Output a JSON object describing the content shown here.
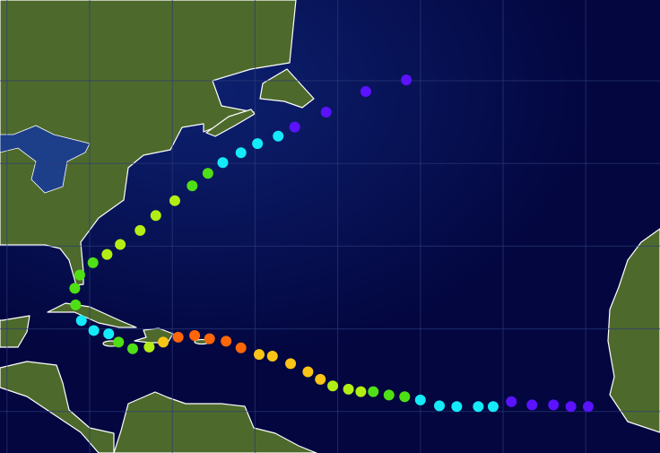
{
  "map": {
    "projection": "equirectangular",
    "grid_step_degrees": 10,
    "colors": {
      "ocean": "#03063f",
      "land": "#4d6a2c",
      "coastline": "#ffffff"
    },
    "track": [
      {
        "lat": 10.6,
        "lon": -19.7,
        "color": "#5a12ff"
      },
      {
        "lat": 10.6,
        "lon": -21.8,
        "color": "#5a12ff"
      },
      {
        "lat": 10.8,
        "lon": -23.9,
        "color": "#5a12ff"
      },
      {
        "lat": 10.8,
        "lon": -26.5,
        "color": "#5a12ff"
      },
      {
        "lat": 11.2,
        "lon": -29.0,
        "color": "#5a12ff"
      },
      {
        "lat": 10.6,
        "lon": -31.2,
        "color": "#14eaf8"
      },
      {
        "lat": 10.6,
        "lon": -33.0,
        "color": "#14eaf8"
      },
      {
        "lat": 10.6,
        "lon": -35.6,
        "color": "#14eaf8"
      },
      {
        "lat": 10.7,
        "lon": -37.7,
        "color": "#14eaf8"
      },
      {
        "lat": 11.4,
        "lon": -40.0,
        "color": "#14eaf8"
      },
      {
        "lat": 11.8,
        "lon": -41.9,
        "color": "#4ee014"
      },
      {
        "lat": 12.0,
        "lon": -43.8,
        "color": "#4ee014"
      },
      {
        "lat": 12.4,
        "lon": -45.7,
        "color": "#4ee014"
      },
      {
        "lat": 12.4,
        "lon": -47.2,
        "color": "#b2ee14"
      },
      {
        "lat": 12.7,
        "lon": -48.7,
        "color": "#b2ee14"
      },
      {
        "lat": 13.1,
        "lon": -50.6,
        "color": "#b2ee14"
      },
      {
        "lat": 13.9,
        "lon": -52.1,
        "color": "#fac416"
      },
      {
        "lat": 14.8,
        "lon": -53.6,
        "color": "#fac416"
      },
      {
        "lat": 15.8,
        "lon": -55.7,
        "color": "#fac416"
      },
      {
        "lat": 16.7,
        "lon": -57.9,
        "color": "#fac416"
      },
      {
        "lat": 16.9,
        "lon": -59.5,
        "color": "#fac416"
      },
      {
        "lat": 17.7,
        "lon": -61.7,
        "color": "#ff6608"
      },
      {
        "lat": 18.5,
        "lon": -63.5,
        "color": "#ff6608"
      },
      {
        "lat": 18.8,
        "lon": -65.5,
        "color": "#ff6608"
      },
      {
        "lat": 19.2,
        "lon": -67.3,
        "color": "#ff6608"
      },
      {
        "lat": 19.0,
        "lon": -69.3,
        "color": "#ff6608"
      },
      {
        "lat": 18.4,
        "lon": -71.1,
        "color": "#fac416"
      },
      {
        "lat": 17.8,
        "lon": -72.8,
        "color": "#b2ee14"
      },
      {
        "lat": 17.6,
        "lon": -74.8,
        "color": "#4ee014"
      },
      {
        "lat": 18.4,
        "lon": -76.5,
        "color": "#4ee014"
      },
      {
        "lat": 19.4,
        "lon": -77.7,
        "color": "#14eaf8"
      },
      {
        "lat": 19.8,
        "lon": -79.5,
        "color": "#14eaf8"
      },
      {
        "lat": 21.0,
        "lon": -81.0,
        "color": "#14eaf8"
      },
      {
        "lat": 22.9,
        "lon": -81.7,
        "color": "#4ee014"
      },
      {
        "lat": 24.9,
        "lon": -81.8,
        "color": "#4ee014"
      },
      {
        "lat": 26.5,
        "lon": -81.2,
        "color": "#4ee014"
      },
      {
        "lat": 28.0,
        "lon": -79.6,
        "color": "#4ee014"
      },
      {
        "lat": 29.0,
        "lon": -77.9,
        "color": "#b2ee14"
      },
      {
        "lat": 30.2,
        "lon": -76.3,
        "color": "#b2ee14"
      },
      {
        "lat": 31.9,
        "lon": -73.9,
        "color": "#b2ee14"
      },
      {
        "lat": 33.7,
        "lon": -72.0,
        "color": "#b2ee14"
      },
      {
        "lat": 35.5,
        "lon": -69.7,
        "color": "#b2ee14"
      },
      {
        "lat": 37.3,
        "lon": -67.6,
        "color": "#4ee014"
      },
      {
        "lat": 38.8,
        "lon": -65.7,
        "color": "#4ee014"
      },
      {
        "lat": 40.1,
        "lon": -63.9,
        "color": "#14eaf8"
      },
      {
        "lat": 41.3,
        "lon": -61.7,
        "color": "#14eaf8"
      },
      {
        "lat": 42.4,
        "lon": -59.7,
        "color": "#14eaf8"
      },
      {
        "lat": 43.3,
        "lon": -57.2,
        "color": "#14eaf8"
      },
      {
        "lat": 44.4,
        "lon": -55.2,
        "color": "#5a12ff"
      },
      {
        "lat": 46.2,
        "lon": -51.4,
        "color": "#5a12ff"
      },
      {
        "lat": 48.7,
        "lon": -46.6,
        "color": "#5a12ff"
      },
      {
        "lat": 50.1,
        "lon": -41.7,
        "color": "#5a12ff"
      }
    ]
  }
}
